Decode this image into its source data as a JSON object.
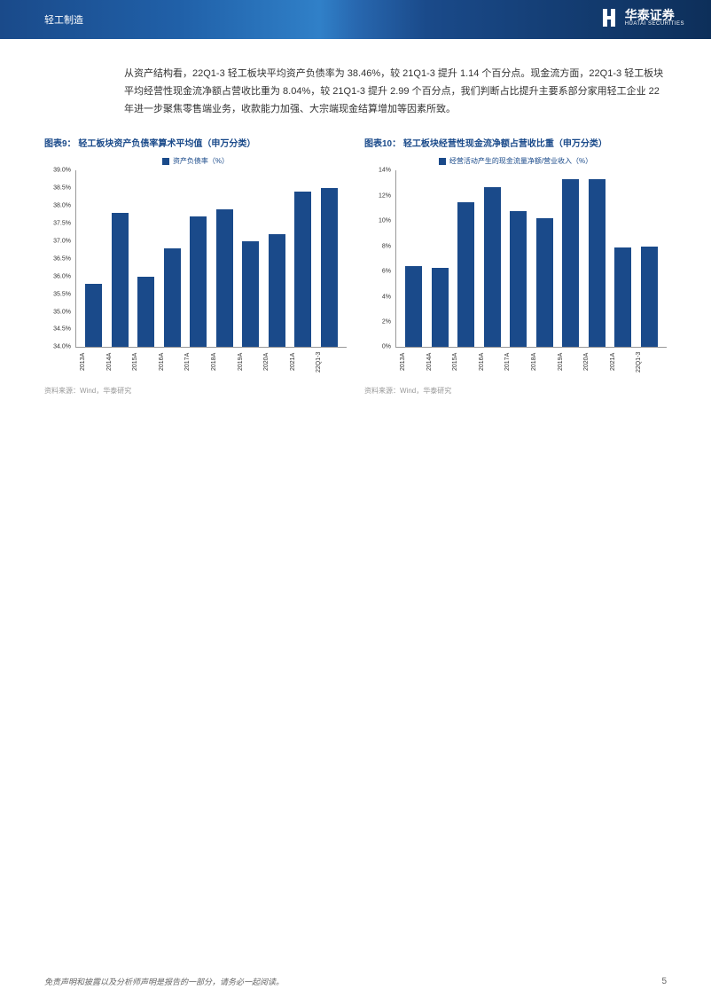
{
  "header": {
    "category": "轻工制造",
    "company_cn": "华泰证券",
    "company_en": "HUATAI SECURITIES"
  },
  "body_paragraph": "从资产结构看，22Q1-3 轻工板块平均资产负债率为 38.46%，较 21Q1-3 提升 1.14 个百分点。现金流方面，22Q1-3 轻工板块平均经营性现金流净额占营收比重为 8.04%，较 21Q1-3 提升 2.99 个百分点，我们判断占比提升主要系部分家用轻工企业 22 年进一步聚焦零售端业务，收款能力加强、大宗端现金结算增加等因素所致。",
  "chart9": {
    "type": "bar",
    "title": "图表9： 轻工板块资产负债率算术平均值（申万分类）",
    "legend": "资产负债率（%）",
    "ymin": 34.0,
    "ymax": 39.0,
    "ystep": 0.5,
    "yformat": "pct1",
    "categories": [
      "2013A",
      "2014A",
      "2015A",
      "2016A",
      "2017A",
      "2018A",
      "2019A",
      "2020A",
      "2021A",
      "22Q1-3"
    ],
    "values": [
      35.8,
      37.8,
      36.0,
      36.8,
      37.7,
      37.9,
      37.0,
      37.2,
      38.4,
      38.5
    ],
    "bar_color": "#1a4a8a",
    "source": "资料来源：Wind，华泰研究"
  },
  "chart10": {
    "type": "bar",
    "title": "图表10： 轻工板块经营性现金流净额占营收比重（申万分类）",
    "legend": "经营活动产生的现金流量净额/营业收入（%）",
    "ymin": 0,
    "ymax": 14,
    "ystep": 2,
    "yformat": "pct0",
    "categories": [
      "2013A",
      "2014A",
      "2015A",
      "2016A",
      "2017A",
      "2018A",
      "2019A",
      "2020A",
      "2021A",
      "22Q1-3"
    ],
    "values": [
      6.4,
      6.3,
      11.5,
      12.7,
      10.8,
      10.2,
      13.3,
      13.3,
      7.9,
      8.0
    ],
    "bar_color": "#1a4a8a",
    "source": "资料来源：Wind，华泰研究"
  },
  "footer": {
    "disclaimer": "免责声明和披露以及分析师声明是报告的一部分，请务必一起阅读。",
    "page": "5"
  }
}
